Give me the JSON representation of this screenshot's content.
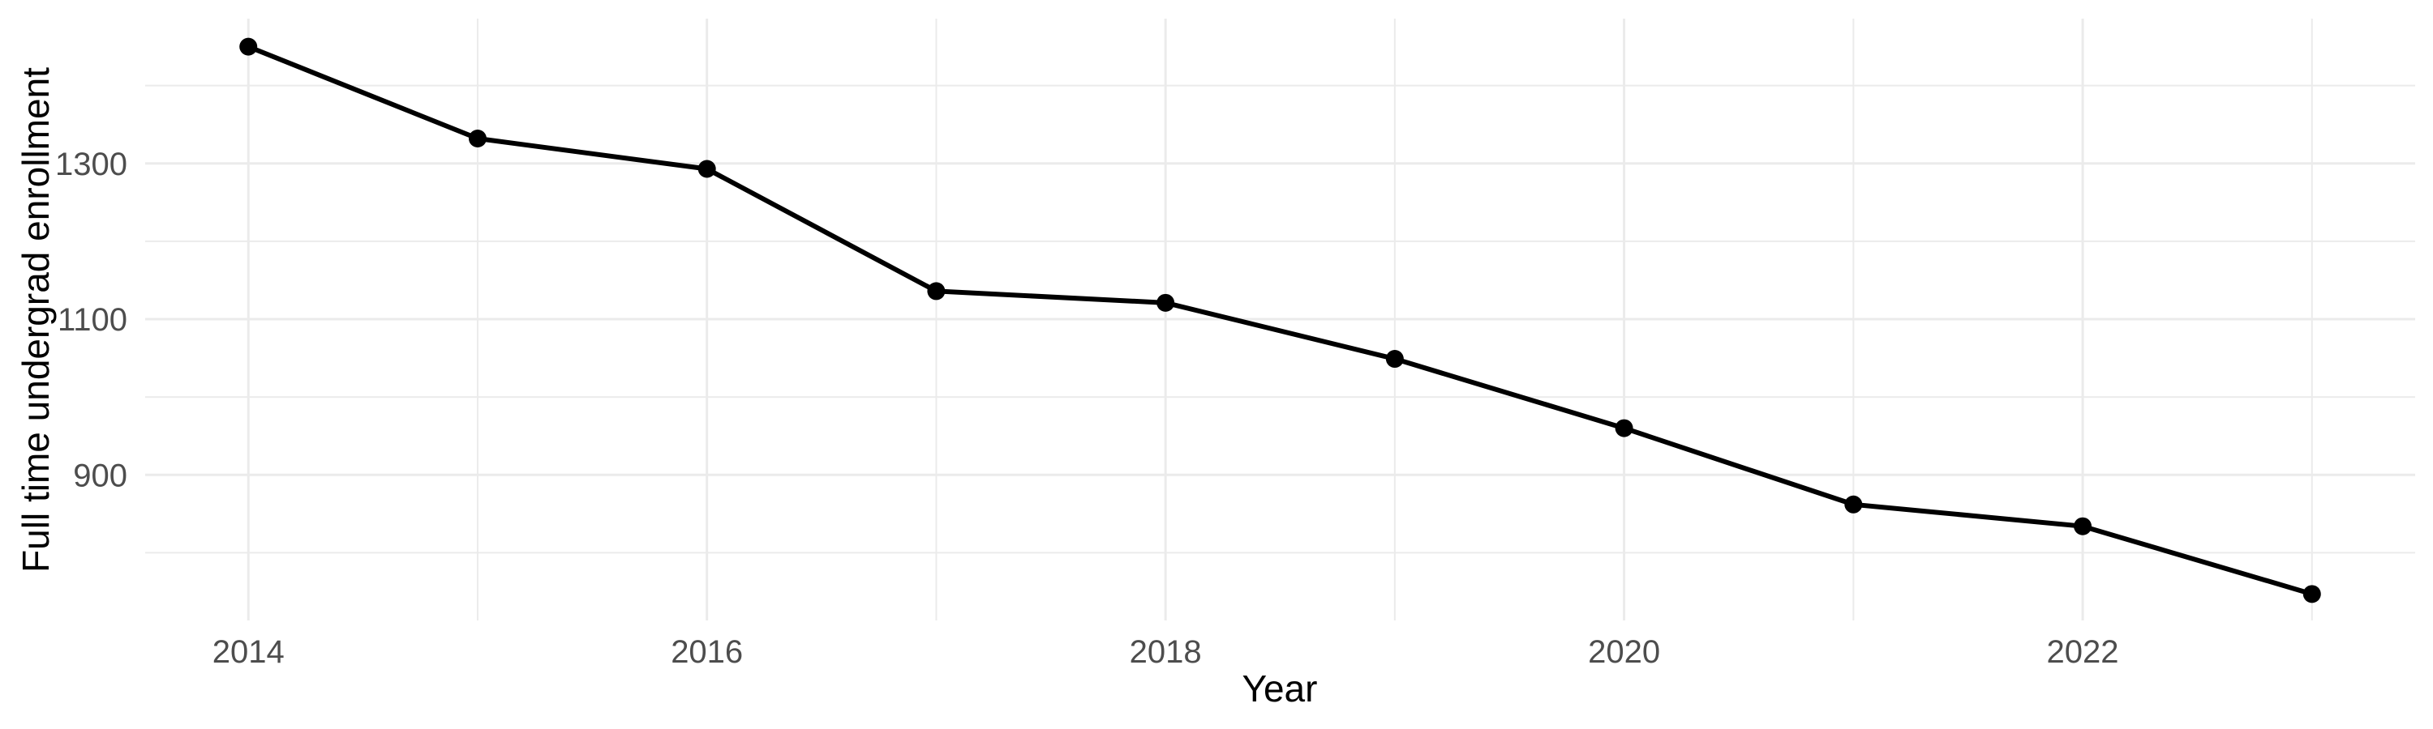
{
  "page": {
    "background": "#FFFFFF"
  },
  "chart_data": {
    "type": "line",
    "title": "",
    "xlabel": "Year",
    "ylabel": "Full time undergrad enrollment",
    "x": [
      2014,
      2015,
      2016,
      2017,
      2018,
      2019,
      2020,
      2021,
      2022,
      2023
    ],
    "series": [
      {
        "name": "Full time undergrad enrollment",
        "values": [
          1450,
          1332,
          1293,
          1136,
          1121,
          1049,
          960,
          862,
          834,
          747
        ]
      }
    ],
    "x_tick_labels": [
      "2014",
      "2016",
      "2018",
      "2020",
      "2022"
    ],
    "x_major_gridlines": [
      2014,
      2016,
      2018,
      2020,
      2022
    ],
    "x_minor_gridlines": [
      2015,
      2017,
      2019,
      2021,
      2023
    ],
    "y_tick_labels": [
      "1300",
      "1100",
      "900"
    ],
    "y_major_gridlines": [
      1300,
      1100,
      900
    ],
    "y_minor_gridlines": [
      1400,
      1200,
      1000,
      800
    ],
    "xlim": [
      2013.55,
      2023.45
    ],
    "ylim": [
      713,
      1486
    ],
    "grid": true,
    "legend": "none",
    "marker": "filled-circle",
    "line_color": "#000000",
    "point_color": "#000000",
    "grid_color": "#EBEBEB",
    "axis_text_color": "#4D4D4D",
    "axis_title_color": "#000000"
  }
}
